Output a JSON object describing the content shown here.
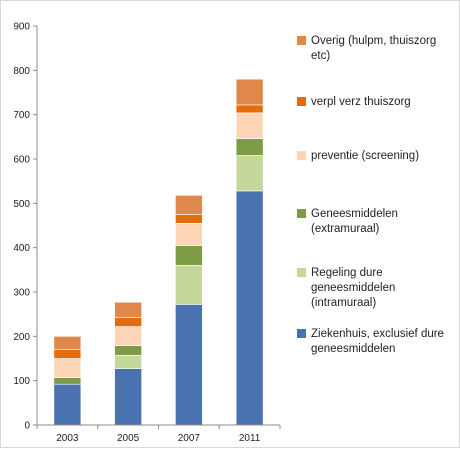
{
  "chart_data": {
    "type": "bar",
    "stacked": true,
    "categories": [
      "2003",
      "2005",
      "2007",
      "2011"
    ],
    "series": [
      {
        "name": "Ziekenhuis,  exclusief dure geneesmiddelen",
        "color": "#4a72b0",
        "values": [
          92,
          127,
          272,
          528
        ]
      },
      {
        "name": "Regeling dure geneesmiddelen (intramuraal)",
        "color": "#c4d89b",
        "values": [
          0,
          30,
          88,
          80
        ]
      },
      {
        "name": "Geneesmiddelen (extramuraal)",
        "color": "#7c9d46",
        "values": [
          15,
          22,
          45,
          38
        ]
      },
      {
        "name": "preventie (screening)",
        "color": "#fbd5b5",
        "values": [
          43,
          43,
          50,
          58
        ]
      },
      {
        "name": "verpl verz thuiszorg",
        "color": "#e46c0a",
        "values": [
          20,
          20,
          20,
          18
        ]
      },
      {
        "name": "Overig (hulpm, thuiszorg etc)",
        "color": "#e0874c",
        "values": [
          30,
          35,
          43,
          58
        ]
      }
    ],
    "ylim": [
      0,
      900
    ],
    "yticks": [
      0,
      100,
      200,
      300,
      400,
      500,
      600,
      700,
      800,
      900
    ],
    "grid": false,
    "legend_position": "right",
    "legend": [
      {
        "lines": [
          "Overig (hulpm, thuiszorg",
          "etc)"
        ],
        "color": "#e0874c"
      },
      {
        "lines": [
          "verpl verz thuiszorg"
        ],
        "color": "#e46c0a"
      },
      {
        "lines": [
          "preventie (screening)"
        ],
        "color": "#fbd5b5"
      },
      {
        "lines": [
          "Geneesmiddelen",
          "(extramuraal)"
        ],
        "color": "#7c9d46"
      },
      {
        "lines": [
          "Regeling dure",
          "geneesmiddelen",
          "(intramuraal)"
        ],
        "color": "#c4d89b"
      },
      {
        "lines": [
          "Ziekenhuis,  exclusief dure",
          "geneesmiddelen"
        ],
        "color": "#4a72b0"
      }
    ]
  }
}
